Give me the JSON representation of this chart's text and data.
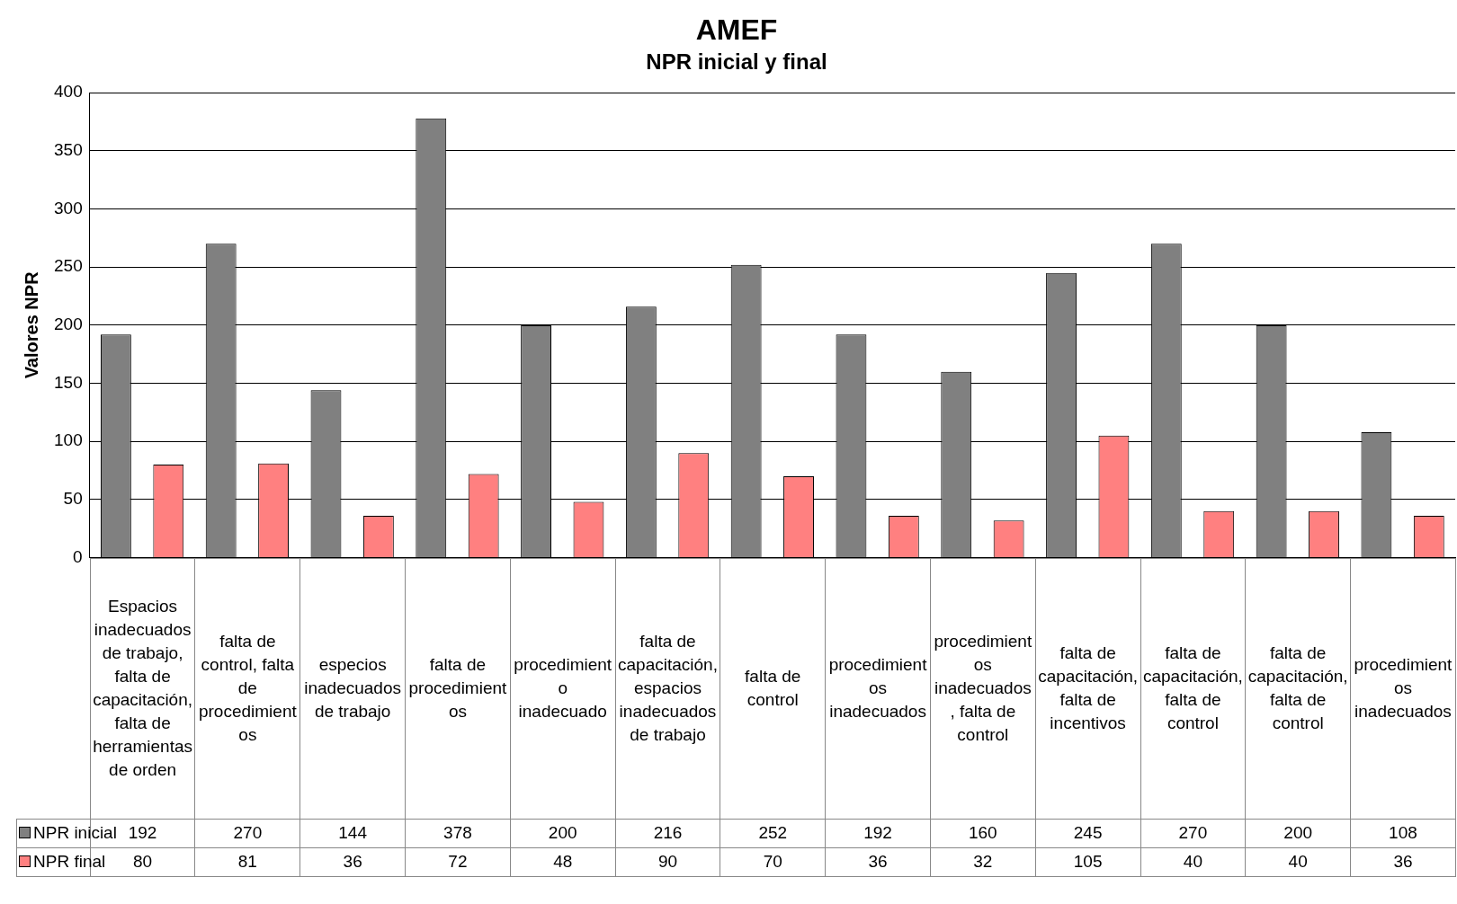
{
  "chart_data": {
    "type": "bar",
    "title": "AMEF",
    "subtitle": "NPR inicial y final",
    "ylabel": "Valores NPR",
    "categories": [
      "Espacios inadecuados de trabajo, falta de capacitación, falta de herramientas de orden",
      "falta de control, falta de procedimientos",
      "especios inadecuados de trabajo",
      "falta de procedimientos",
      "procedimiento inadecuado",
      "falta de capacitación, espacios inadecuados de trabajo",
      "falta de control",
      "procedimientos inadecuados",
      "procedimientos inadecuados, falta de control",
      "falta de capacitación, falta de incentivos",
      "falta de capacitación, falta de control",
      "falta de capacitación, falta de control",
      "procedimientos inadecuados"
    ],
    "series": [
      {
        "name": "NPR inicial",
        "color": "#808080",
        "values": [
          192,
          270,
          144,
          378,
          200,
          216,
          252,
          192,
          160,
          245,
          270,
          200,
          108
        ]
      },
      {
        "name": "NPR final",
        "color": "#ff8080",
        "values": [
          80,
          81,
          36,
          72,
          48,
          90,
          70,
          36,
          32,
          105,
          40,
          40,
          36
        ]
      }
    ],
    "ylim": [
      0,
      400
    ],
    "yticks": [
      0,
      50,
      100,
      150,
      200,
      250,
      300,
      350,
      400
    ],
    "grid": "y",
    "legend": "bottom",
    "data_labels": true
  }
}
